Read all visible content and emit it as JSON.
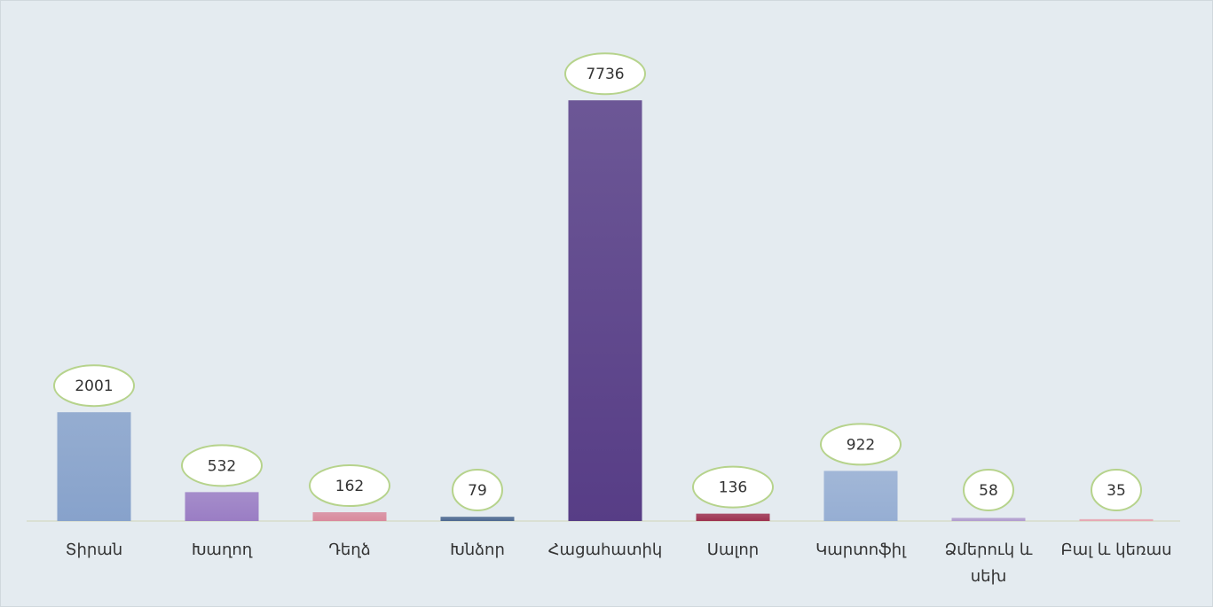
{
  "chart_data": {
    "type": "bar",
    "categories": [
      "Տիրան",
      "Խաղող",
      "Դեղձ",
      "Խնձոր",
      "Հացահատիկ",
      "Սալոր",
      "Կարտոֆիլ",
      "Ձմերուկ և սեխ",
      "Բալ և կեռաս"
    ],
    "values": [
      2001,
      532,
      162,
      79,
      7736,
      136,
      922,
      58,
      35
    ],
    "colors": [
      "#87a2cb",
      "#9a7dc4",
      "#d98a9d",
      "#4e6991",
      "#573d86",
      "#9e3250",
      "#96aed3",
      "#b29dcf",
      "#e6a6b2"
    ],
    "ylim": [
      0,
      8000
    ]
  }
}
